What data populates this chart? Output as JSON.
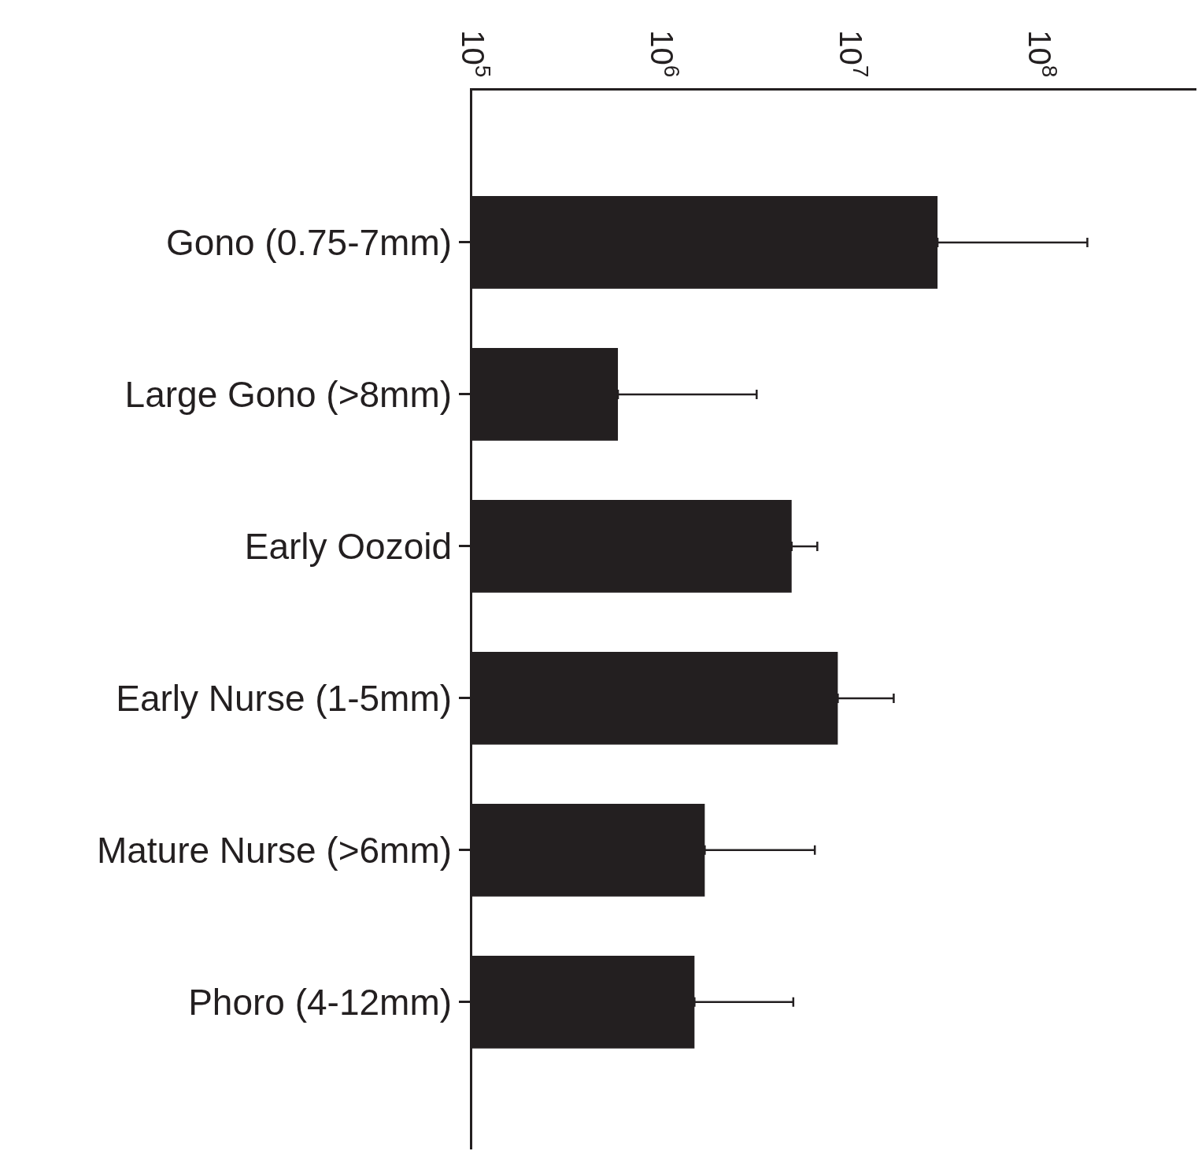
{
  "chart_data": {
    "type": "bar",
    "orientation": "horizontal",
    "log": "x",
    "categories": [
      "Gono (0.75-7mm)",
      "Large Gono (>8mm)",
      "Early Oozoid",
      "Early Nurse (1-5mm)",
      "Mature Nurse (>6mm)",
      "Phoro (4-12mm)"
    ],
    "values": [
      29000000,
      590000,
      4900000,
      8600000,
      1700000,
      1500000
    ],
    "errors": [
      [
        29000000,
        180000000
      ],
      [
        590000,
        3200000
      ],
      [
        4900000,
        6700000
      ],
      [
        8600000,
        17000000
      ],
      [
        1700000,
        6500000
      ],
      [
        1500000,
        5000000
      ]
    ],
    "color": "#231f20",
    "xlim": [
      100000,
      680000000
    ],
    "xticks": [
      {
        "value": 100000,
        "label": "10$^{5}$"
      },
      {
        "value": 1000000,
        "label": "10$^{6}$"
      },
      {
        "value": 10000000,
        "label": "10$^{7}$"
      },
      {
        "value": 100000000,
        "label": "10$^{8}$"
      }
    ],
    "grid": false
  }
}
